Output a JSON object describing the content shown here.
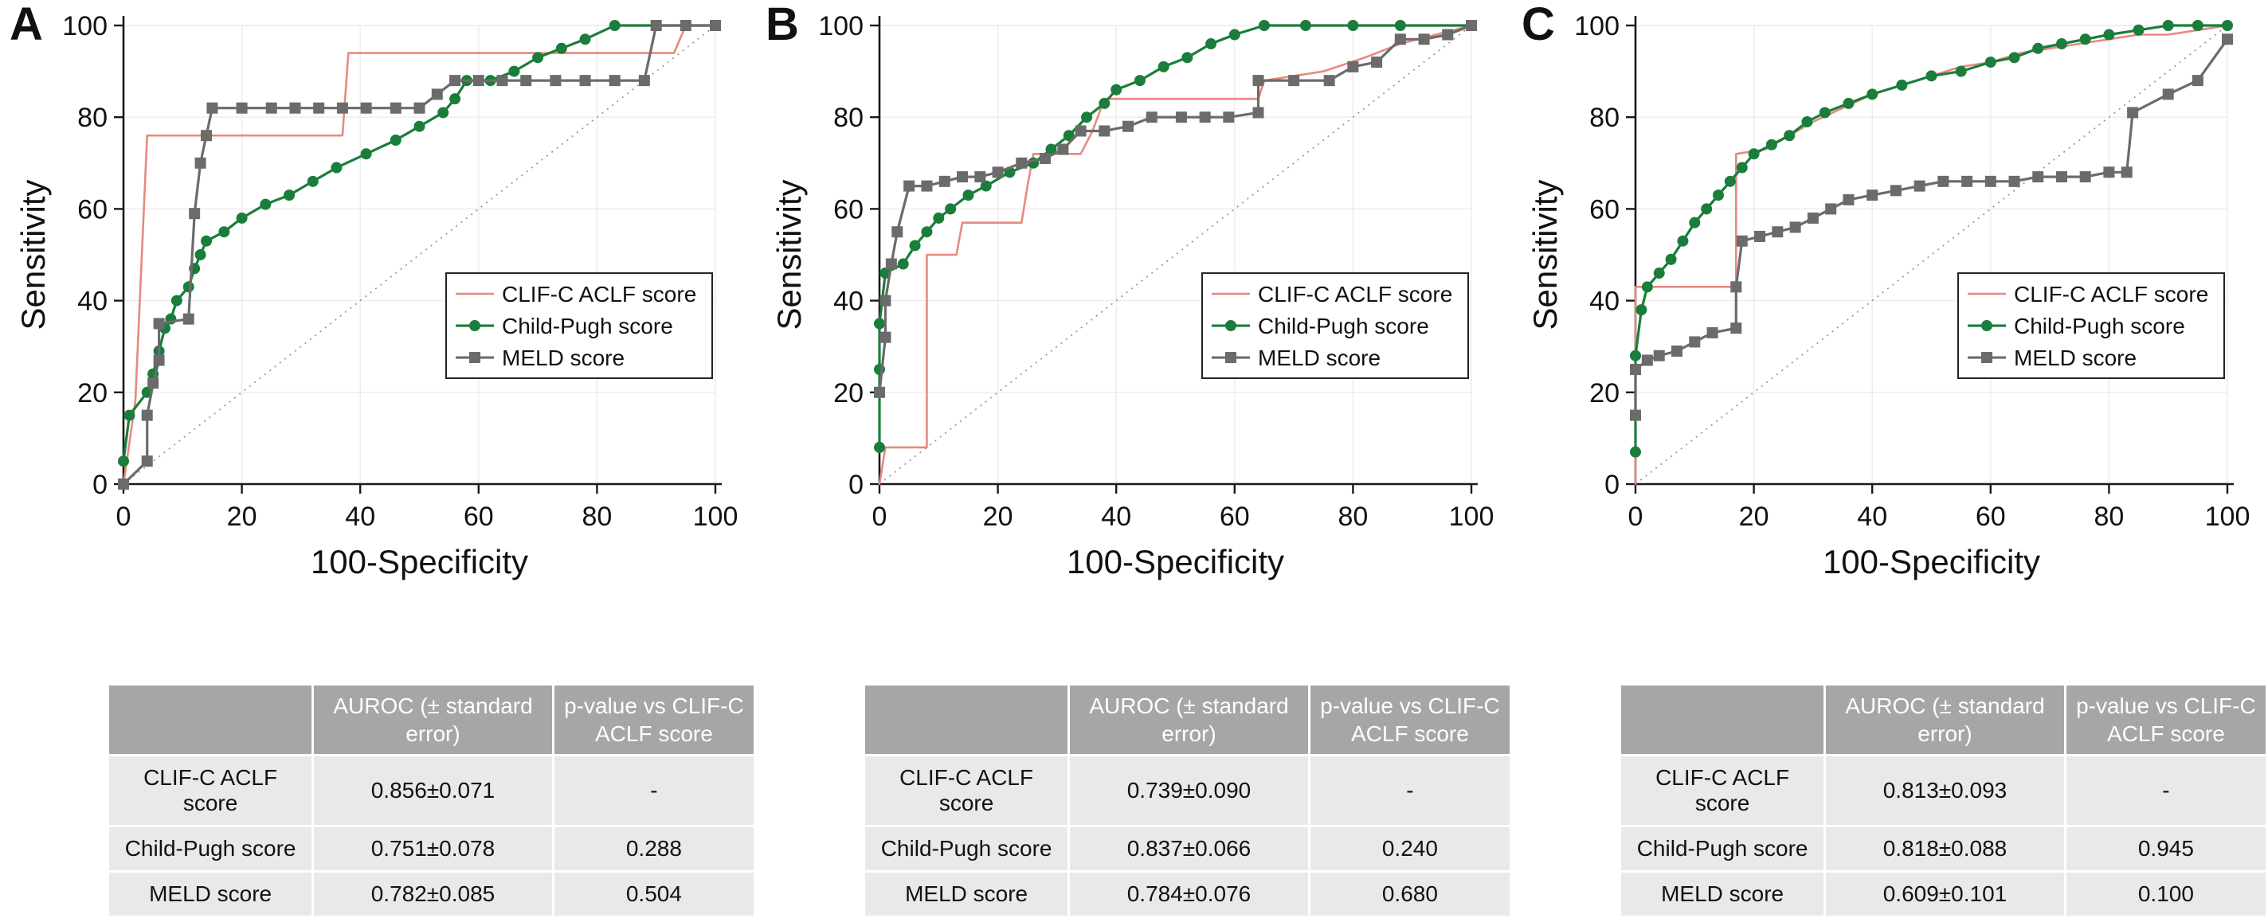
{
  "figure": {
    "xlabel": "100-Specificity",
    "ylabel": "Sensitivity"
  },
  "colors": {
    "clif_line": "#e8897e",
    "child_line": "#1a7d3b",
    "meld_line": "#6b6b6b",
    "diagonal": "#9a9a9a",
    "grid": "#ececec",
    "axis": "#191919",
    "table_header_bg": "#a6a6a6",
    "table_header_text": "#ffffff",
    "table_row_bg": "#e9e9e9"
  },
  "chart_data": [
    {
      "type": "line",
      "panel_label": "A",
      "xlabel": "100-Specificity",
      "ylabel": "Sensitivity",
      "xlim": [
        0,
        100
      ],
      "ylim": [
        0,
        100
      ],
      "xticks": [
        0,
        20,
        40,
        60,
        80,
        100
      ],
      "yticks": [
        0,
        20,
        40,
        60,
        80,
        100
      ],
      "grid": true,
      "diagonal_reference": true,
      "legend_position": "inside lower-right",
      "series": [
        {
          "name": "CLIF-C ACLF score",
          "color_key": "clif_line",
          "marker": "none",
          "points": [
            [
              0,
              0
            ],
            [
              2,
              18
            ],
            [
              4,
              76
            ],
            [
              37,
              76
            ],
            [
              38,
              94
            ],
            [
              93,
              94
            ],
            [
              95,
              100
            ],
            [
              100,
              100
            ]
          ]
        },
        {
          "name": "Child-Pugh score",
          "color_key": "child_line",
          "marker": "circle",
          "points": [
            [
              0,
              5
            ],
            [
              1,
              15
            ],
            [
              4,
              20
            ],
            [
              5,
              24
            ],
            [
              6,
              29
            ],
            [
              7,
              34
            ],
            [
              8,
              36
            ],
            [
              9,
              40
            ],
            [
              11,
              43
            ],
            [
              12,
              47
            ],
            [
              13,
              50
            ],
            [
              14,
              53
            ],
            [
              17,
              55
            ],
            [
              20,
              58
            ],
            [
              24,
              61
            ],
            [
              28,
              63
            ],
            [
              32,
              66
            ],
            [
              36,
              69
            ],
            [
              41,
              72
            ],
            [
              46,
              75
            ],
            [
              50,
              78
            ],
            [
              54,
              81
            ],
            [
              56,
              84
            ],
            [
              58,
              88
            ],
            [
              62,
              88
            ],
            [
              66,
              90
            ],
            [
              70,
              93
            ],
            [
              74,
              95
            ],
            [
              78,
              97
            ],
            [
              83,
              100
            ],
            [
              90,
              100
            ],
            [
              100,
              100
            ]
          ]
        },
        {
          "name": "MELD score",
          "color_key": "meld_line",
          "marker": "square",
          "points": [
            [
              0,
              0
            ],
            [
              4,
              5
            ],
            [
              4,
              15
            ],
            [
              5,
              22
            ],
            [
              6,
              27
            ],
            [
              6,
              35
            ],
            [
              11,
              36
            ],
            [
              12,
              59
            ],
            [
              13,
              70
            ],
            [
              14,
              76
            ],
            [
              15,
              82
            ],
            [
              20,
              82
            ],
            [
              25,
              82
            ],
            [
              29,
              82
            ],
            [
              33,
              82
            ],
            [
              37,
              82
            ],
            [
              41,
              82
            ],
            [
              46,
              82
            ],
            [
              50,
              82
            ],
            [
              53,
              85
            ],
            [
              56,
              88
            ],
            [
              60,
              88
            ],
            [
              64,
              88
            ],
            [
              68,
              88
            ],
            [
              73,
              88
            ],
            [
              78,
              88
            ],
            [
              83,
              88
            ],
            [
              88,
              88
            ],
            [
              90,
              100
            ],
            [
              95,
              100
            ],
            [
              100,
              100
            ]
          ]
        }
      ],
      "table": {
        "headers": [
          "",
          "AUROC (± standard error)",
          "p-value vs CLIF-C ACLF score"
        ],
        "rows": [
          [
            "CLIF-C ACLF score",
            "0.856±0.071",
            "-"
          ],
          [
            "Child-Pugh score",
            "0.751±0.078",
            "0.288"
          ],
          [
            "MELD score",
            "0.782±0.085",
            "0.504"
          ]
        ]
      }
    },
    {
      "type": "line",
      "panel_label": "B",
      "xlabel": "100-Specificity",
      "ylabel": "Sensitivity",
      "xlim": [
        0,
        100
      ],
      "ylim": [
        0,
        100
      ],
      "xticks": [
        0,
        20,
        40,
        60,
        80,
        100
      ],
      "yticks": [
        0,
        20,
        40,
        60,
        80,
        100
      ],
      "grid": true,
      "diagonal_reference": true,
      "legend_position": "inside lower-right",
      "series": [
        {
          "name": "CLIF-C ACLF score",
          "color_key": "clif_line",
          "marker": "none",
          "points": [
            [
              0,
              0
            ],
            [
              1,
              8
            ],
            [
              8,
              8
            ],
            [
              8,
              50
            ],
            [
              13,
              50
            ],
            [
              14,
              57
            ],
            [
              24,
              57
            ],
            [
              25,
              65
            ],
            [
              26,
              72
            ],
            [
              34,
              72
            ],
            [
              36,
              77
            ],
            [
              38,
              84
            ],
            [
              64,
              84
            ],
            [
              65,
              88
            ],
            [
              75,
              90
            ],
            [
              82,
              93
            ],
            [
              88,
              96
            ],
            [
              100,
              100
            ]
          ]
        },
        {
          "name": "Child-Pugh score",
          "color_key": "child_line",
          "marker": "circle",
          "points": [
            [
              0,
              8
            ],
            [
              0,
              25
            ],
            [
              0,
              35
            ],
            [
              1,
              46
            ],
            [
              4,
              48
            ],
            [
              6,
              52
            ],
            [
              8,
              55
            ],
            [
              10,
              58
            ],
            [
              12,
              60
            ],
            [
              15,
              63
            ],
            [
              18,
              65
            ],
            [
              22,
              68
            ],
            [
              26,
              70
            ],
            [
              29,
              73
            ],
            [
              32,
              76
            ],
            [
              35,
              80
            ],
            [
              38,
              83
            ],
            [
              40,
              86
            ],
            [
              44,
              88
            ],
            [
              48,
              91
            ],
            [
              52,
              93
            ],
            [
              56,
              96
            ],
            [
              60,
              98
            ],
            [
              65,
              100
            ],
            [
              72,
              100
            ],
            [
              80,
              100
            ],
            [
              88,
              100
            ],
            [
              100,
              100
            ]
          ]
        },
        {
          "name": "MELD score",
          "color_key": "meld_line",
          "marker": "square",
          "points": [
            [
              0,
              20
            ],
            [
              1,
              32
            ],
            [
              1,
              40
            ],
            [
              2,
              48
            ],
            [
              3,
              55
            ],
            [
              5,
              65
            ],
            [
              8,
              65
            ],
            [
              11,
              66
            ],
            [
              14,
              67
            ],
            [
              17,
              67
            ],
            [
              20,
              68
            ],
            [
              24,
              70
            ],
            [
              28,
              71
            ],
            [
              31,
              73
            ],
            [
              34,
              77
            ],
            [
              38,
              77
            ],
            [
              42,
              78
            ],
            [
              46,
              80
            ],
            [
              51,
              80
            ],
            [
              55,
              80
            ],
            [
              59,
              80
            ],
            [
              64,
              81
            ],
            [
              64,
              88
            ],
            [
              70,
              88
            ],
            [
              76,
              88
            ],
            [
              80,
              91
            ],
            [
              84,
              92
            ],
            [
              88,
              97
            ],
            [
              92,
              97
            ],
            [
              96,
              98
            ],
            [
              100,
              100
            ]
          ]
        }
      ],
      "table": {
        "headers": [
          "",
          "AUROC (± standard error)",
          "p-value vs CLIF-C ACLF score"
        ],
        "rows": [
          [
            "CLIF-C ACLF score",
            "0.739±0.090",
            "-"
          ],
          [
            "Child-Pugh score",
            "0.837±0.066",
            "0.240"
          ],
          [
            "MELD score",
            "0.784±0.076",
            "0.680"
          ]
        ]
      }
    },
    {
      "type": "line",
      "panel_label": "C",
      "xlabel": "100-Specificity",
      "ylabel": "Sensitivity",
      "xlim": [
        0,
        100
      ],
      "ylim": [
        0,
        100
      ],
      "xticks": [
        0,
        20,
        40,
        60,
        80,
        100
      ],
      "yticks": [
        0,
        20,
        40,
        60,
        80,
        100
      ],
      "grid": true,
      "diagonal_reference": true,
      "legend_position": "inside lower-right",
      "series": [
        {
          "name": "CLIF-C ACLF score",
          "color_key": "clif_line",
          "marker": "none",
          "points": [
            [
              0,
              0
            ],
            [
              0,
              43
            ],
            [
              17,
              43
            ],
            [
              17,
              72
            ],
            [
              22,
              73
            ],
            [
              26,
              76
            ],
            [
              30,
              79
            ],
            [
              35,
              82
            ],
            [
              40,
              85
            ],
            [
              45,
              87
            ],
            [
              50,
              89
            ],
            [
              55,
              91
            ],
            [
              60,
              92
            ],
            [
              65,
              94
            ],
            [
              70,
              95
            ],
            [
              75,
              96
            ],
            [
              80,
              97
            ],
            [
              85,
              98
            ],
            [
              90,
              98
            ],
            [
              95,
              99
            ],
            [
              100,
              100
            ]
          ]
        },
        {
          "name": "Child-Pugh score",
          "color_key": "child_line",
          "marker": "circle",
          "points": [
            [
              0,
              7
            ],
            [
              0,
              28
            ],
            [
              1,
              38
            ],
            [
              2,
              43
            ],
            [
              4,
              46
            ],
            [
              6,
              49
            ],
            [
              8,
              53
            ],
            [
              10,
              57
            ],
            [
              12,
              60
            ],
            [
              14,
              63
            ],
            [
              16,
              66
            ],
            [
              18,
              69
            ],
            [
              20,
              72
            ],
            [
              23,
              74
            ],
            [
              26,
              76
            ],
            [
              29,
              79
            ],
            [
              32,
              81
            ],
            [
              36,
              83
            ],
            [
              40,
              85
            ],
            [
              45,
              87
            ],
            [
              50,
              89
            ],
            [
              55,
              90
            ],
            [
              60,
              92
            ],
            [
              64,
              93
            ],
            [
              68,
              95
            ],
            [
              72,
              96
            ],
            [
              76,
              97
            ],
            [
              80,
              98
            ],
            [
              85,
              99
            ],
            [
              90,
              100
            ],
            [
              95,
              100
            ],
            [
              100,
              100
            ]
          ]
        },
        {
          "name": "MELD score",
          "color_key": "meld_line",
          "marker": "square",
          "points": [
            [
              0,
              15
            ],
            [
              0,
              25
            ],
            [
              2,
              27
            ],
            [
              4,
              28
            ],
            [
              7,
              29
            ],
            [
              10,
              31
            ],
            [
              13,
              33
            ],
            [
              17,
              34
            ],
            [
              17,
              43
            ],
            [
              18,
              53
            ],
            [
              21,
              54
            ],
            [
              24,
              55
            ],
            [
              27,
              56
            ],
            [
              30,
              58
            ],
            [
              33,
              60
            ],
            [
              36,
              62
            ],
            [
              40,
              63
            ],
            [
              44,
              64
            ],
            [
              48,
              65
            ],
            [
              52,
              66
            ],
            [
              56,
              66
            ],
            [
              60,
              66
            ],
            [
              64,
              66
            ],
            [
              68,
              67
            ],
            [
              72,
              67
            ],
            [
              76,
              67
            ],
            [
              80,
              68
            ],
            [
              83,
              68
            ],
            [
              84,
              81
            ],
            [
              90,
              85
            ],
            [
              95,
              88
            ],
            [
              100,
              97
            ]
          ]
        }
      ],
      "table": {
        "headers": [
          "",
          "AUROC (± standard error)",
          "p-value vs CLIF-C ACLF score"
        ],
        "rows": [
          [
            "CLIF-C ACLF score",
            "0.813±0.093",
            "-"
          ],
          [
            "Child-Pugh score",
            "0.818±0.088",
            "0.945"
          ],
          [
            "MELD score",
            "0.609±0.101",
            "0.100"
          ]
        ]
      }
    }
  ]
}
